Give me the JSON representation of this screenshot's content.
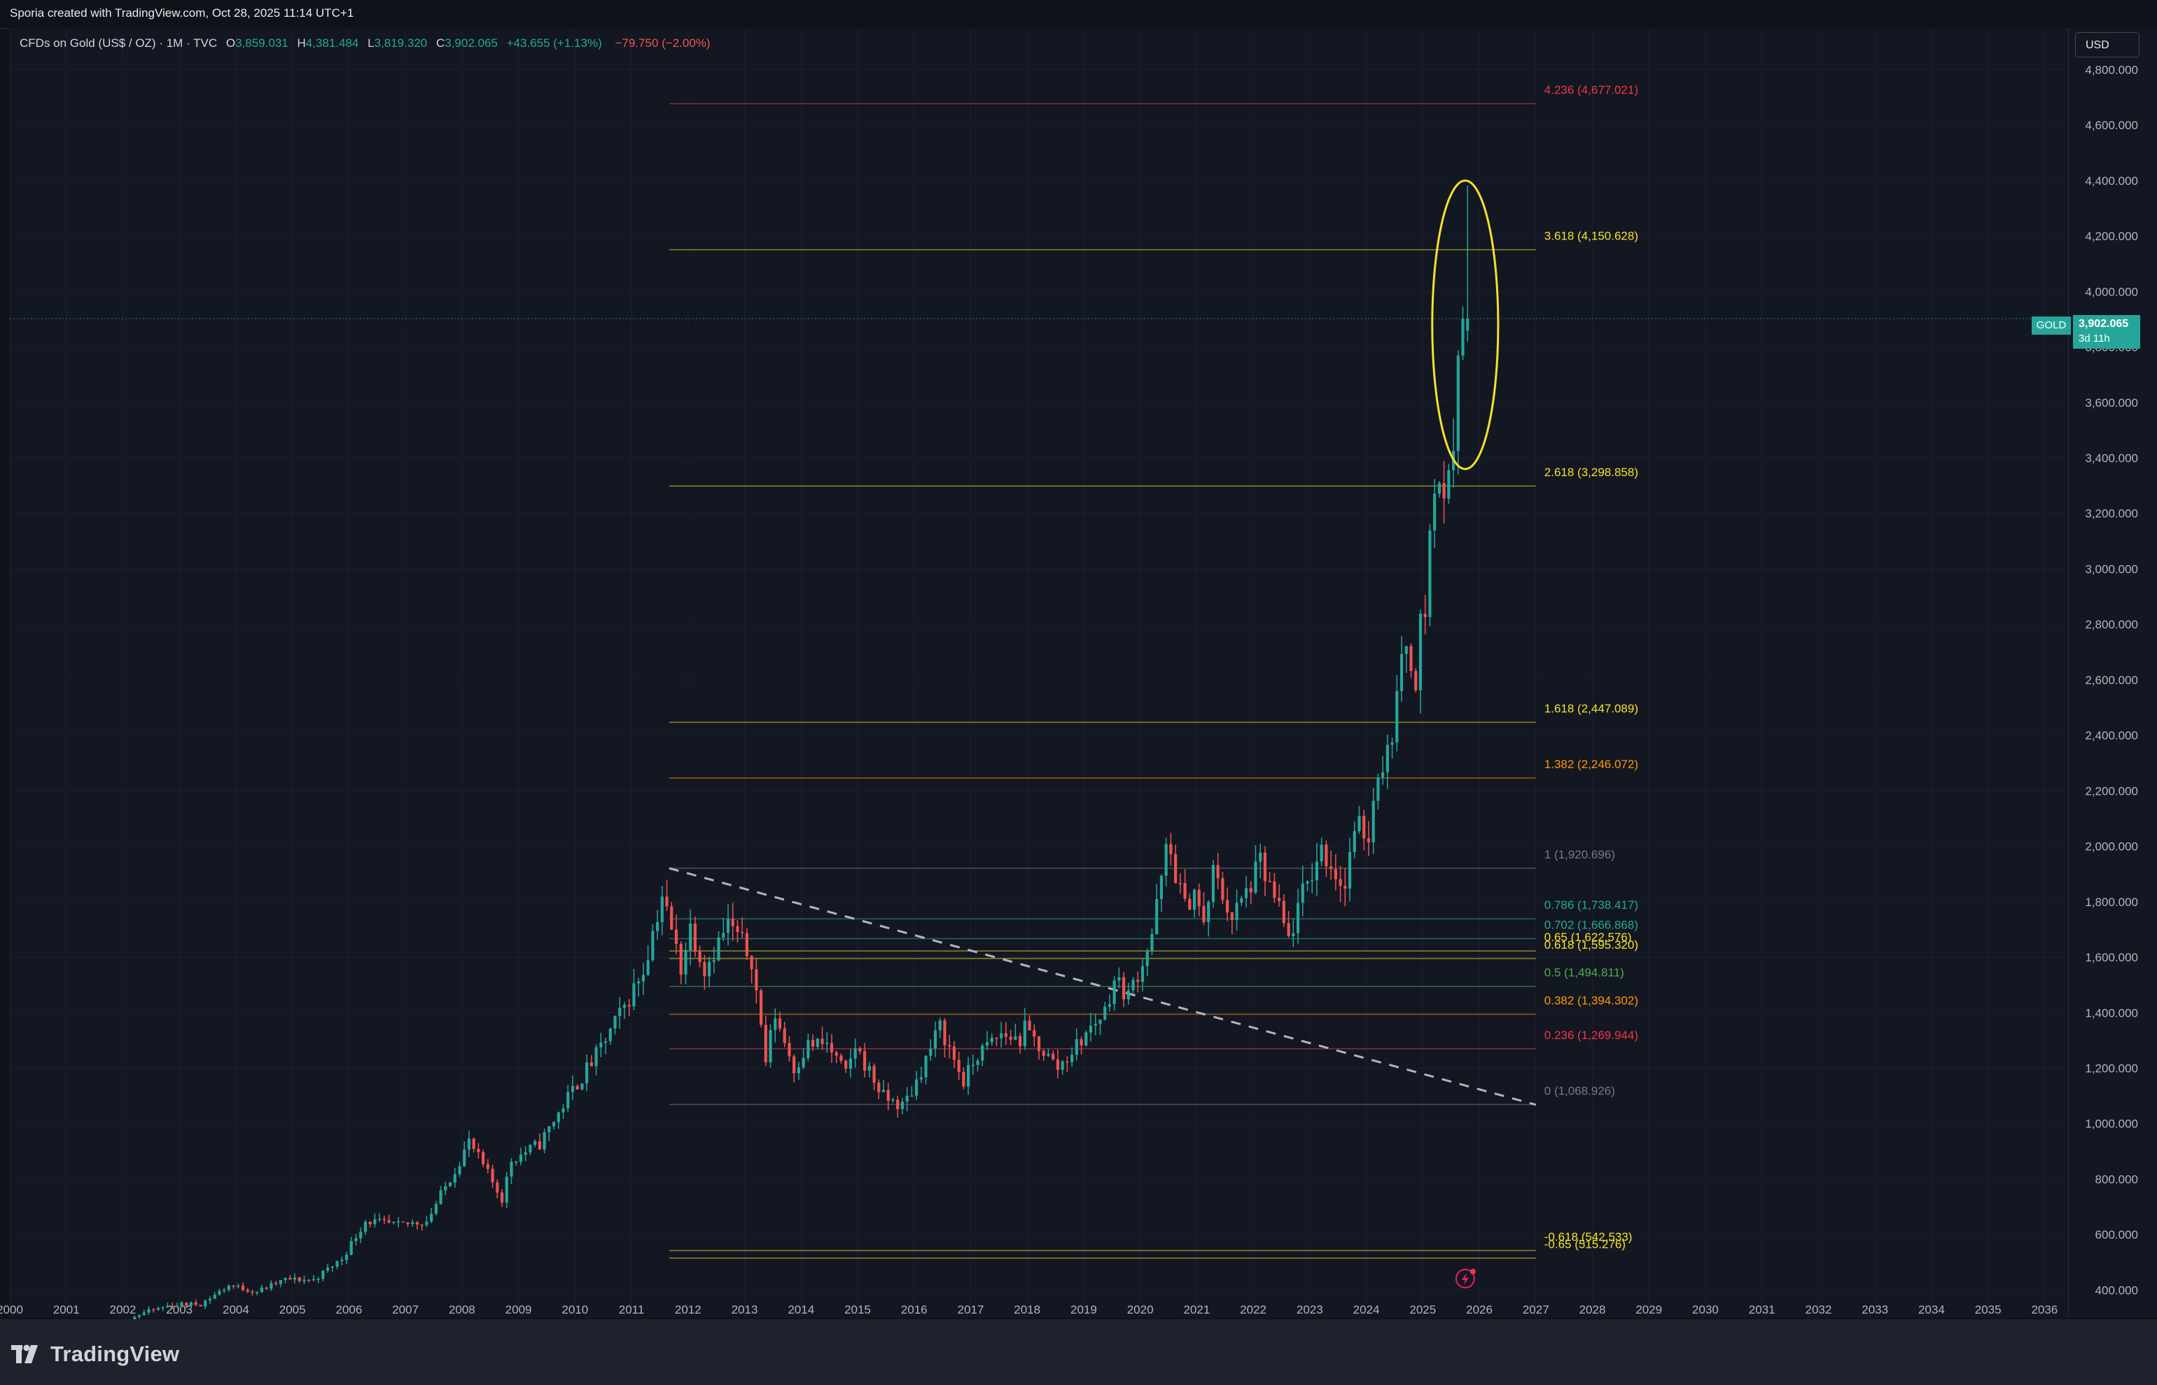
{
  "header": {
    "credit": "Sporia created with TradingView.com, Oct 28, 2025 11:14 UTC+1"
  },
  "legend": {
    "symbol": "CFDs on Gold (US$ / OZ) · 1M · TVC",
    "open_label": "O",
    "open": "3,859.031",
    "high_label": "H",
    "high": "4,381.484",
    "low_label": "L",
    "low": "3,819.320",
    "close_label": "C",
    "close": "3,902.065",
    "change": "+43.655 (+1.13%)",
    "change2": "−79.750 (−2.00%)"
  },
  "currency_button": "USD",
  "price_tag": {
    "symbol": "GOLD",
    "value": "3,902.065",
    "countdown": "3d 11h"
  },
  "brand": {
    "name": "TradingView"
  },
  "colors": {
    "up": "#26a69a",
    "down": "#ef5350",
    "background": "#131722",
    "grid": "#1c2030",
    "highlight_ellipse": "#f5e22a"
  },
  "icons": {
    "logo": "tradingview-logo-icon",
    "alert": "lightning-alert-icon"
  },
  "chart_data": {
    "type": "candlestick",
    "interval": "1M",
    "x_range": [
      "2000-01",
      "2036-06"
    ],
    "ylim": [
      300,
      4950
    ],
    "y_ticks": [
      "400.000",
      "600.000",
      "800.000",
      "1,000.000",
      "1,200.000",
      "1,400.000",
      "1,600.000",
      "1,800.000",
      "2,000.000",
      "2,200.000",
      "2,400.000",
      "2,600.000",
      "2,800.000",
      "3,000.000",
      "3,200.000",
      "3,400.000",
      "3,600.000",
      "3,800.000",
      "4,000.000",
      "4,200.000",
      "4,400.000",
      "4,600.000",
      "4,800.000"
    ],
    "x_ticks": [
      "2000",
      "2001",
      "2002",
      "2003",
      "2004",
      "2005",
      "2006",
      "2007",
      "2008",
      "2009",
      "2010",
      "2011",
      "2012",
      "2013",
      "2014",
      "2015",
      "2016",
      "2017",
      "2018",
      "2019",
      "2020",
      "2021",
      "2022",
      "2023",
      "2024",
      "2025",
      "2026",
      "2027",
      "2028",
      "2029",
      "2030",
      "2031",
      "2032",
      "2033",
      "2034",
      "2035",
      "2036"
    ],
    "grid": true,
    "price_path": [
      [
        "2000-01",
        289
      ],
      [
        "2000-12",
        272
      ],
      [
        "2001-06",
        270
      ],
      [
        "2001-12",
        279
      ],
      [
        "2002-06",
        318
      ],
      [
        "2002-12",
        347
      ],
      [
        "2003-06",
        350
      ],
      [
        "2003-12",
        417
      ],
      [
        "2004-06",
        395
      ],
      [
        "2004-12",
        438
      ],
      [
        "2005-06",
        437
      ],
      [
        "2005-12",
        513
      ],
      [
        "2006-05",
        650
      ],
      [
        "2006-12",
        632
      ],
      [
        "2007-06",
        650
      ],
      [
        "2007-12",
        834
      ],
      [
        "2008-03",
        935
      ],
      [
        "2008-10",
        730
      ],
      [
        "2008-12",
        869
      ],
      [
        "2009-06",
        927
      ],
      [
        "2009-12",
        1095
      ],
      [
        "2010-06",
        1245
      ],
      [
        "2010-12",
        1420
      ],
      [
        "2011-04",
        1556
      ],
      [
        "2011-08",
        1825
      ],
      [
        "2011-12",
        1565
      ],
      [
        "2012-02",
        1710
      ],
      [
        "2012-05",
        1560
      ],
      [
        "2012-10",
        1720
      ],
      [
        "2012-12",
        1675
      ],
      [
        "2013-03",
        1595
      ],
      [
        "2013-06",
        1230
      ],
      [
        "2013-08",
        1395
      ],
      [
        "2013-12",
        1200
      ],
      [
        "2014-03",
        1285
      ],
      [
        "2014-07",
        1285
      ],
      [
        "2014-11",
        1175
      ],
      [
        "2015-01",
        1280
      ],
      [
        "2015-07",
        1095
      ],
      [
        "2015-11",
        1063
      ],
      [
        "2016-01",
        1117
      ],
      [
        "2016-07",
        1350
      ],
      [
        "2016-12",
        1150
      ],
      [
        "2017-03",
        1248
      ],
      [
        "2017-08",
        1322
      ],
      [
        "2017-12",
        1302
      ],
      [
        "2018-01",
        1340
      ],
      [
        "2018-08",
        1201
      ],
      [
        "2018-12",
        1282
      ],
      [
        "2019-06",
        1409
      ],
      [
        "2019-08",
        1520
      ],
      [
        "2019-11",
        1463
      ],
      [
        "2020-02",
        1585
      ],
      [
        "2020-04",
        1685
      ],
      [
        "2020-07",
        1975
      ],
      [
        "2020-08",
        1967
      ],
      [
        "2020-11",
        1776
      ],
      [
        "2021-01",
        1848
      ],
      [
        "2021-03",
        1707
      ],
      [
        "2021-05",
        1905
      ],
      [
        "2021-09",
        1742
      ],
      [
        "2021-12",
        1829
      ],
      [
        "2022-03",
        1937
      ],
      [
        "2022-07",
        1765
      ],
      [
        "2022-09",
        1660
      ],
      [
        "2022-12",
        1824
      ],
      [
        "2023-04",
        1990
      ],
      [
        "2023-09",
        1848
      ],
      [
        "2023-10",
        1984
      ],
      [
        "2023-12",
        2062
      ],
      [
        "2024-02",
        2044
      ],
      [
        "2024-04",
        2286
      ],
      [
        "2024-06",
        2326
      ],
      [
        "2024-09",
        2634
      ],
      [
        "2024-10",
        2743
      ],
      [
        "2024-12",
        2624
      ],
      [
        "2025-01",
        2798
      ],
      [
        "2025-02",
        2857
      ],
      [
        "2025-03",
        3124
      ],
      [
        "2025-04",
        3288
      ],
      [
        "2025-05",
        3289
      ],
      [
        "2025-06",
        3303
      ],
      [
        "2025-07",
        3289
      ],
      [
        "2025-08",
        3448
      ],
      [
        "2025-09",
        3858
      ],
      [
        "2025-10",
        3902
      ]
    ],
    "last_candle": {
      "date": "2025-10",
      "open": 3859.031,
      "high": 4381.484,
      "low": 3819.32,
      "close": 3902.065
    },
    "fibonacci": {
      "x_start": "2011-09",
      "x_end": "2027-01",
      "levels": [
        {
          "label": "4.236 (4,677.021)",
          "value": 4677.021,
          "color": "#f23645"
        },
        {
          "label": "3.618 (4,150.628)",
          "value": 4150.628,
          "color": "#f5e22a"
        },
        {
          "label": "2.618 (3,298.858)",
          "value": 3298.858,
          "color": "#f5e22a"
        },
        {
          "label": "1.618 (2,447.089)",
          "value": 2447.089,
          "color": "#f5e22a"
        },
        {
          "label": "1.382 (2,246.072)",
          "value": 2246.072,
          "color": "#ff9800"
        },
        {
          "label": "1 (1,920.696)",
          "value": 1920.696,
          "color": "#787b86"
        },
        {
          "label": "0.786 (1,738.417)",
          "value": 1738.417,
          "color": "#22ab94"
        },
        {
          "label": "0.702 (1,666.868)",
          "value": 1666.868,
          "color": "#22ab94"
        },
        {
          "label": "0.65 (1,622.576)",
          "value": 1622.576,
          "color": "#f5e22a"
        },
        {
          "label": "0.618 (1,595.320)",
          "value": 1595.32,
          "color": "#f5e22a"
        },
        {
          "label": "0.5 (1,494.811)",
          "value": 1494.811,
          "color": "#4caf50"
        },
        {
          "label": "0.382 (1,394.302)",
          "value": 1394.302,
          "color": "#ff9800"
        },
        {
          "label": "0.236 (1,269.944)",
          "value": 1269.944,
          "color": "#f23645"
        },
        {
          "label": "0 (1,068.926)",
          "value": 1068.926,
          "color": "#787b86"
        },
        {
          "label": "-0.618 (542.533)",
          "value": 542.533,
          "color": "#f5e22a"
        },
        {
          "label": "-0.65 (515.276)",
          "value": 515.276,
          "color": "#f5e22a"
        }
      ]
    },
    "trendline": {
      "from": [
        "2011-09",
        1920.7
      ],
      "to": [
        "2027-01",
        1068
      ],
      "style": "dashed"
    },
    "highlight_ellipse": {
      "center": [
        "2025-10",
        3880
      ],
      "x_half_width_months": 7,
      "y_span": [
        3360,
        4400
      ]
    }
  }
}
